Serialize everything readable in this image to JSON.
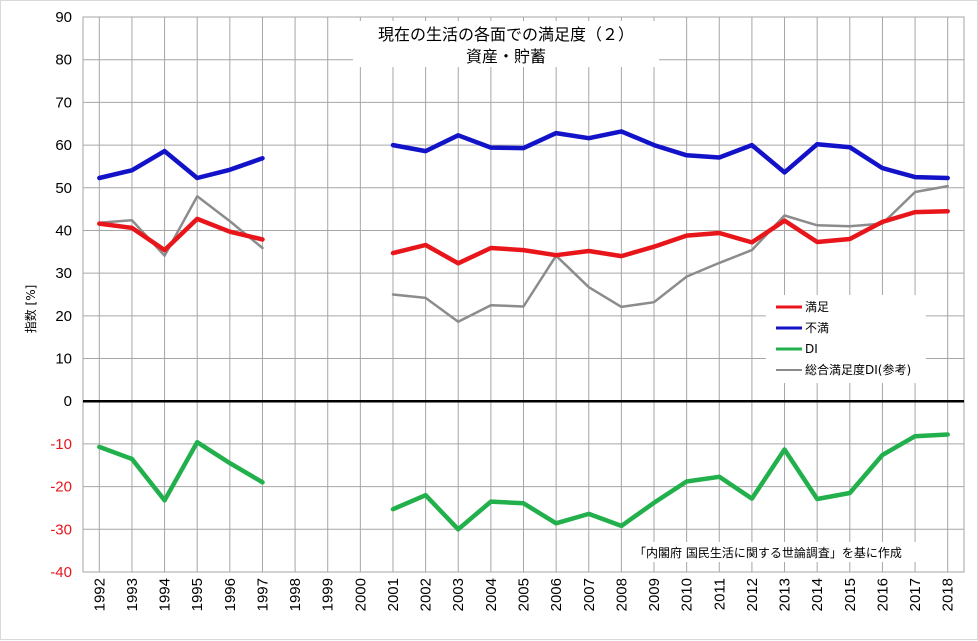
{
  "chart_data": {
    "type": "line",
    "title": "現在の生活の各面での満足度（２）",
    "subtitle": "資産・貯蓄",
    "ylabel": "指数 [%]",
    "xlabel": "",
    "ylim": [
      -40,
      90
    ],
    "yticks": [
      90,
      80,
      70,
      60,
      50,
      40,
      30,
      20,
      10,
      0,
      -10,
      -20,
      -30,
      -40
    ],
    "categories": [
      "1992",
      "1993",
      "1994",
      "1995",
      "1996",
      "1997",
      "1998",
      "1999",
      "2000",
      "2001",
      "2002",
      "2003",
      "2004",
      "2005",
      "2006",
      "2007",
      "2008",
      "2009",
      "2010",
      "2011",
      "2012",
      "2013",
      "2014",
      "2015",
      "2016",
      "2017",
      "2018"
    ],
    "grid": true,
    "legend_position": "right",
    "series": [
      {
        "name": "満足",
        "color": "#e8161b",
        "values": [
          41.6,
          40.6,
          35.4,
          42.7,
          39.7,
          37.9,
          null,
          null,
          null,
          34.7,
          36.6,
          32.3,
          35.9,
          35.4,
          34.2,
          35.2,
          34.0,
          36.2,
          38.8,
          39.4,
          37.2,
          42.3,
          37.3,
          38.0,
          42.0,
          44.3,
          44.5
        ]
      },
      {
        "name": "不満",
        "color": "#1212c8",
        "values": [
          52.3,
          54.1,
          58.6,
          52.3,
          54.2,
          56.9,
          null,
          null,
          null,
          60.0,
          58.6,
          62.3,
          59.4,
          59.3,
          62.8,
          61.6,
          63.2,
          60.0,
          57.6,
          57.1,
          60.0,
          53.6,
          60.2,
          59.5,
          54.6,
          52.5,
          52.3
        ]
      },
      {
        "name": "DI",
        "color": "#22b04c",
        "values": [
          -10.7,
          -13.5,
          -23.2,
          -9.6,
          -14.5,
          -19.0,
          null,
          null,
          null,
          -25.3,
          -22.0,
          -30.0,
          -23.5,
          -23.9,
          -28.6,
          -26.4,
          -29.2,
          -23.8,
          -18.8,
          -17.7,
          -22.8,
          -11.3,
          -22.9,
          -21.5,
          -12.6,
          -8.2,
          -7.8
        ]
      },
      {
        "name": "総合満足度DI(参考)",
        "color": "#8c8c8c",
        "values": [
          41.8,
          42.4,
          34.1,
          48.0,
          42.2,
          35.9,
          null,
          null,
          null,
          25.0,
          24.2,
          18.6,
          22.5,
          22.2,
          34.1,
          26.7,
          22.1,
          23.2,
          29.2,
          32.4,
          35.4,
          43.5,
          41.2,
          41.0,
          41.6,
          49.0,
          50.4
        ]
      }
    ],
    "annotation": "「内閣府 国民生活に関する世論調査」を基に作成",
    "colors": {
      "positive_tick": "#000000",
      "negative_tick": "#e8161b",
      "grid": "#a6a6a6",
      "zero_line": "#000000"
    }
  }
}
